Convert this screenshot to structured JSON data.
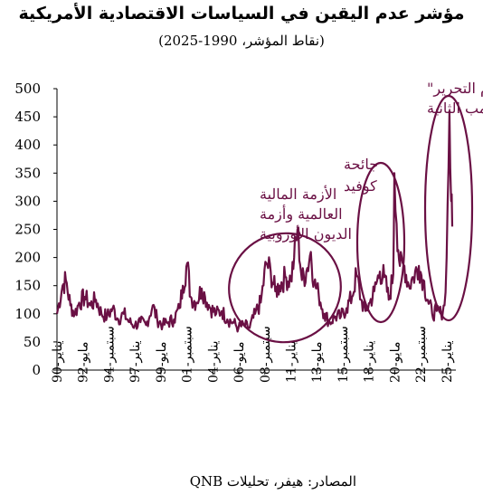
{
  "title": "مؤشر عدم اليقين في السياسات الاقتصادية الأمريكية",
  "subtitle": "(نقاط المؤشر، 1990-2025)",
  "source": "المصادر: هيفر، تحليلات QNB",
  "colors": {
    "line": "#6a1044",
    "annotation": "#6a1044",
    "axis": "#000000"
  },
  "chart_data": {
    "type": "line",
    "title": "مؤشر عدم اليقين في السياسات الاقتصادية الأمريكية",
    "subtitle": "(نقاط المؤشر، 1990-2025)",
    "xlabel": "",
    "ylabel": "",
    "ylim": [
      0,
      500
    ],
    "yticks": [
      0,
      50,
      100,
      150,
      200,
      250,
      300,
      350,
      400,
      450,
      500
    ],
    "grid": false,
    "x_tick_labels": [
      "يناير-90",
      "مايو-92",
      "سبتمبر-94",
      "يناير-97",
      "مايو-99",
      "سبتمبر-01",
      "يناير-04",
      "مايو-06",
      "سبتمبر-08",
      "يناير-11",
      "مايو-13",
      "سبتمبر-15",
      "يناير-18",
      "مايو-20",
      "سبتمبر-22",
      "يناير-25"
    ],
    "series": [
      {
        "values": [
          [
            1990.0,
            100
          ],
          [
            1990.5,
            150
          ],
          [
            1990.8,
            160
          ],
          [
            1991.2,
            115
          ],
          [
            1991.6,
            100
          ],
          [
            1992.0,
            120
          ],
          [
            1992.5,
            130
          ],
          [
            1993.0,
            115
          ],
          [
            1993.5,
            125
          ],
          [
            1994.0,
            100
          ],
          [
            1994.5,
            95
          ],
          [
            1995.0,
            110
          ],
          [
            1995.5,
            90
          ],
          [
            1996.0,
            100
          ],
          [
            1996.5,
            85
          ],
          [
            1997.0,
            80
          ],
          [
            1997.5,
            85
          ],
          [
            1998.0,
            80
          ],
          [
            1998.6,
            115
          ],
          [
            1999.0,
            90
          ],
          [
            1999.5,
            80
          ],
          [
            2000.0,
            85
          ],
          [
            2000.5,
            90
          ],
          [
            2001.0,
            110
          ],
          [
            2001.3,
            150
          ],
          [
            2001.7,
            190
          ],
          [
            2002.0,
            130
          ],
          [
            2002.5,
            120
          ],
          [
            2003.0,
            145
          ],
          [
            2003.3,
            130
          ],
          [
            2003.8,
            110
          ],
          [
            2004.3,
            100
          ],
          [
            2004.8,
            105
          ],
          [
            2005.3,
            90
          ],
          [
            2005.8,
            85
          ],
          [
            2006.3,
            75
          ],
          [
            2006.8,
            80
          ],
          [
            2007.3,
            75
          ],
          [
            2007.8,
            100
          ],
          [
            2008.3,
            120
          ],
          [
            2008.8,
            190
          ],
          [
            2009.2,
            175
          ],
          [
            2009.6,
            140
          ],
          [
            2010.0,
            150
          ],
          [
            2010.5,
            165
          ],
          [
            2011.0,
            160
          ],
          [
            2011.3,
            200
          ],
          [
            2011.6,
            250
          ],
          [
            2012.0,
            160
          ],
          [
            2012.4,
            175
          ],
          [
            2012.8,
            210
          ],
          [
            2013.1,
            155
          ],
          [
            2013.5,
            135
          ],
          [
            2014.0,
            100
          ],
          [
            2014.5,
            85
          ],
          [
            2015.0,
            95
          ],
          [
            2015.5,
            95
          ],
          [
            2016.0,
            110
          ],
          [
            2016.5,
            130
          ],
          [
            2016.9,
            170
          ],
          [
            2017.3,
            125
          ],
          [
            2017.7,
            105
          ],
          [
            2018.1,
            120
          ],
          [
            2018.5,
            140
          ],
          [
            2019.0,
            175
          ],
          [
            2019.4,
            165
          ],
          [
            2019.8,
            125
          ],
          [
            2020.2,
            170
          ],
          [
            2020.3,
            350
          ],
          [
            2020.5,
            260
          ],
          [
            2020.8,
            185
          ],
          [
            2021.2,
            185
          ],
          [
            2021.6,
            150
          ],
          [
            2022.0,
            165
          ],
          [
            2022.5,
            185
          ],
          [
            2022.9,
            160
          ],
          [
            2023.3,
            125
          ],
          [
            2023.7,
            100
          ],
          [
            2024.1,
            105
          ],
          [
            2024.5,
            100
          ],
          [
            2024.8,
            115
          ],
          [
            2025.0,
            200
          ],
          [
            2025.25,
            460
          ],
          [
            2025.4,
            300
          ],
          [
            2025.5,
            255
          ]
        ]
      }
    ],
    "annotations": [
      {
        "lines": [
          "الأزمة المالية",
          "العالمية وأزمة",
          "الديون الأوروبية"
        ]
      },
      {
        "lines": [
          "جائحة",
          "كوفيد"
        ]
      },
      {
        "lines": [
          "رسوم \"يوم التحرير\"",
          "خلال رئاسة ترامب الثانية"
        ]
      }
    ]
  }
}
